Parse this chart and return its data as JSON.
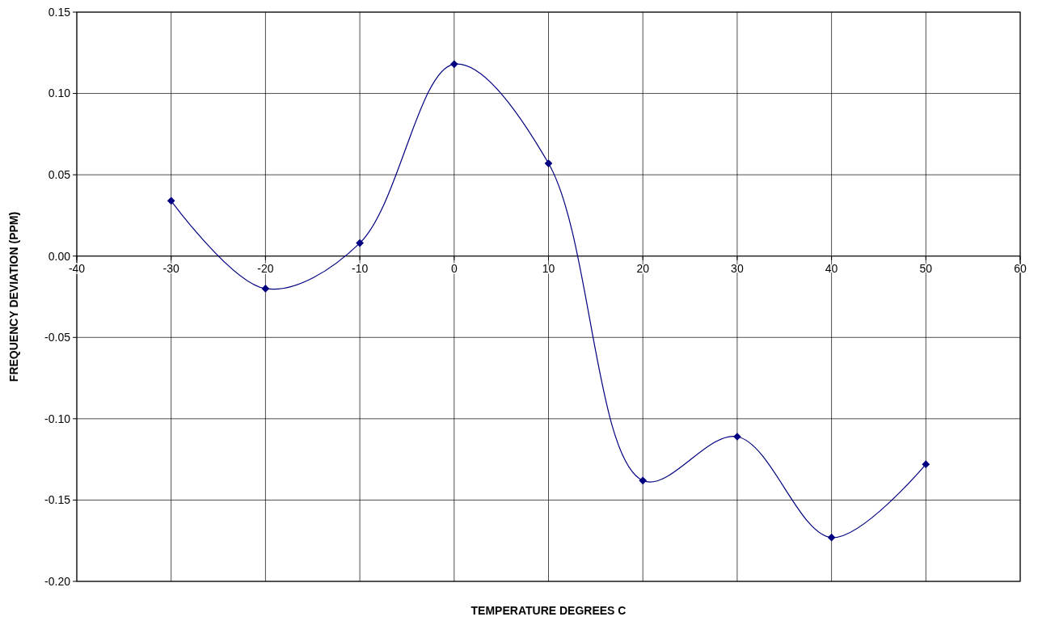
{
  "chart_data": {
    "type": "line",
    "xlabel": "TEMPERATURE DEGREES C",
    "ylabel": "FREQUENCY DEVIATION (PPM)",
    "x": [
      -30,
      -20,
      -10,
      0,
      10,
      20,
      30,
      40,
      50
    ],
    "series": [
      {
        "color": "#000080",
        "values": [
          0.034,
          -0.02,
          0.008,
          0.118,
          0.057,
          -0.138,
          -0.111,
          -0.173,
          -0.128
        ]
      }
    ],
    "xlim": [
      -40,
      60
    ],
    "xticks": [
      -40,
      -30,
      -20,
      -10,
      0,
      10,
      20,
      30,
      40,
      50,
      60
    ],
    "ylim": [
      -0.2,
      0.15
    ],
    "yticks": [
      {
        "value": -0.2,
        "label": "-0.20"
      },
      {
        "value": -0.15,
        "label": "-0.15"
      },
      {
        "value": -0.1,
        "label": "-0.10"
      },
      {
        "value": -0.05,
        "label": "-0.05"
      },
      {
        "value": 0,
        "label": "0.00"
      },
      {
        "value": 0.05,
        "label": "0.05"
      },
      {
        "value": 0.1,
        "label": "0.10"
      },
      {
        "value": 0.15,
        "label": "0.15"
      }
    ],
    "grid": true,
    "marker": "diamond",
    "line_style": "solid"
  }
}
